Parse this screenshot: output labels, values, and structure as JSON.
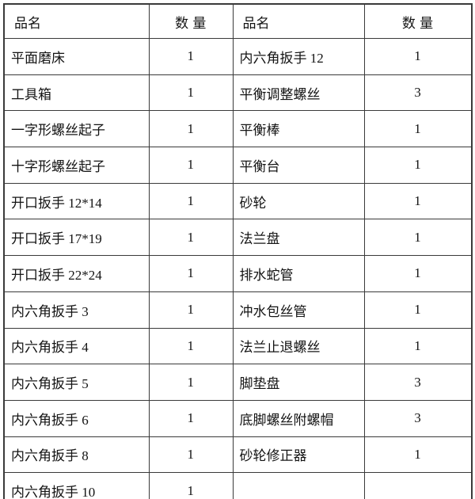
{
  "colors": {
    "border": "#3a3a3a",
    "text": "#141414",
    "background": "#ffffff"
  },
  "table": {
    "left": {
      "header": {
        "name": "品名",
        "qty": "数 量"
      },
      "rows": [
        {
          "name": "平面磨床",
          "qty": "1"
        },
        {
          "name": "工具箱",
          "qty": "1"
        },
        {
          "name": "一字形螺丝起子",
          "qty": "1"
        },
        {
          "name": "十字形螺丝起子",
          "qty": "1"
        },
        {
          "name": "开口扳手 12*14",
          "qty": "1"
        },
        {
          "name": "开口扳手 17*19",
          "qty": "1"
        },
        {
          "name": "开口扳手 22*24",
          "qty": "1"
        },
        {
          "name": "内六角扳手 3",
          "qty": "1"
        },
        {
          "name": "内六角扳手 4",
          "qty": "1"
        },
        {
          "name": "内六角扳手 5",
          "qty": "1"
        },
        {
          "name": "内六角扳手 6",
          "qty": "1"
        },
        {
          "name": "内六角扳手 8",
          "qty": "1"
        },
        {
          "name": "内六角扳手 10",
          "qty": "1"
        }
      ]
    },
    "right": {
      "header": {
        "name": "品名",
        "qty": "数 量"
      },
      "rows": [
        {
          "name": "内六角扳手 12",
          "qty": "1"
        },
        {
          "name": "平衡调整螺丝",
          "qty": "3"
        },
        {
          "name": "平衡棒",
          "qty": "1"
        },
        {
          "name": "平衡台",
          "qty": "1"
        },
        {
          "name": "砂轮",
          "qty": "1"
        },
        {
          "name": "法兰盘",
          "qty": "1"
        },
        {
          "name": "排水蛇管",
          "qty": "1"
        },
        {
          "name": "冲水包丝管",
          "qty": "1"
        },
        {
          "name": "法兰止退螺丝",
          "qty": "1"
        },
        {
          "name": "脚垫盘",
          "qty": "3"
        },
        {
          "name": "底脚螺丝附螺帽",
          "qty": "3"
        },
        {
          "name": "砂轮修正器",
          "qty": "1"
        },
        {
          "name": "",
          "qty": ""
        }
      ]
    }
  }
}
